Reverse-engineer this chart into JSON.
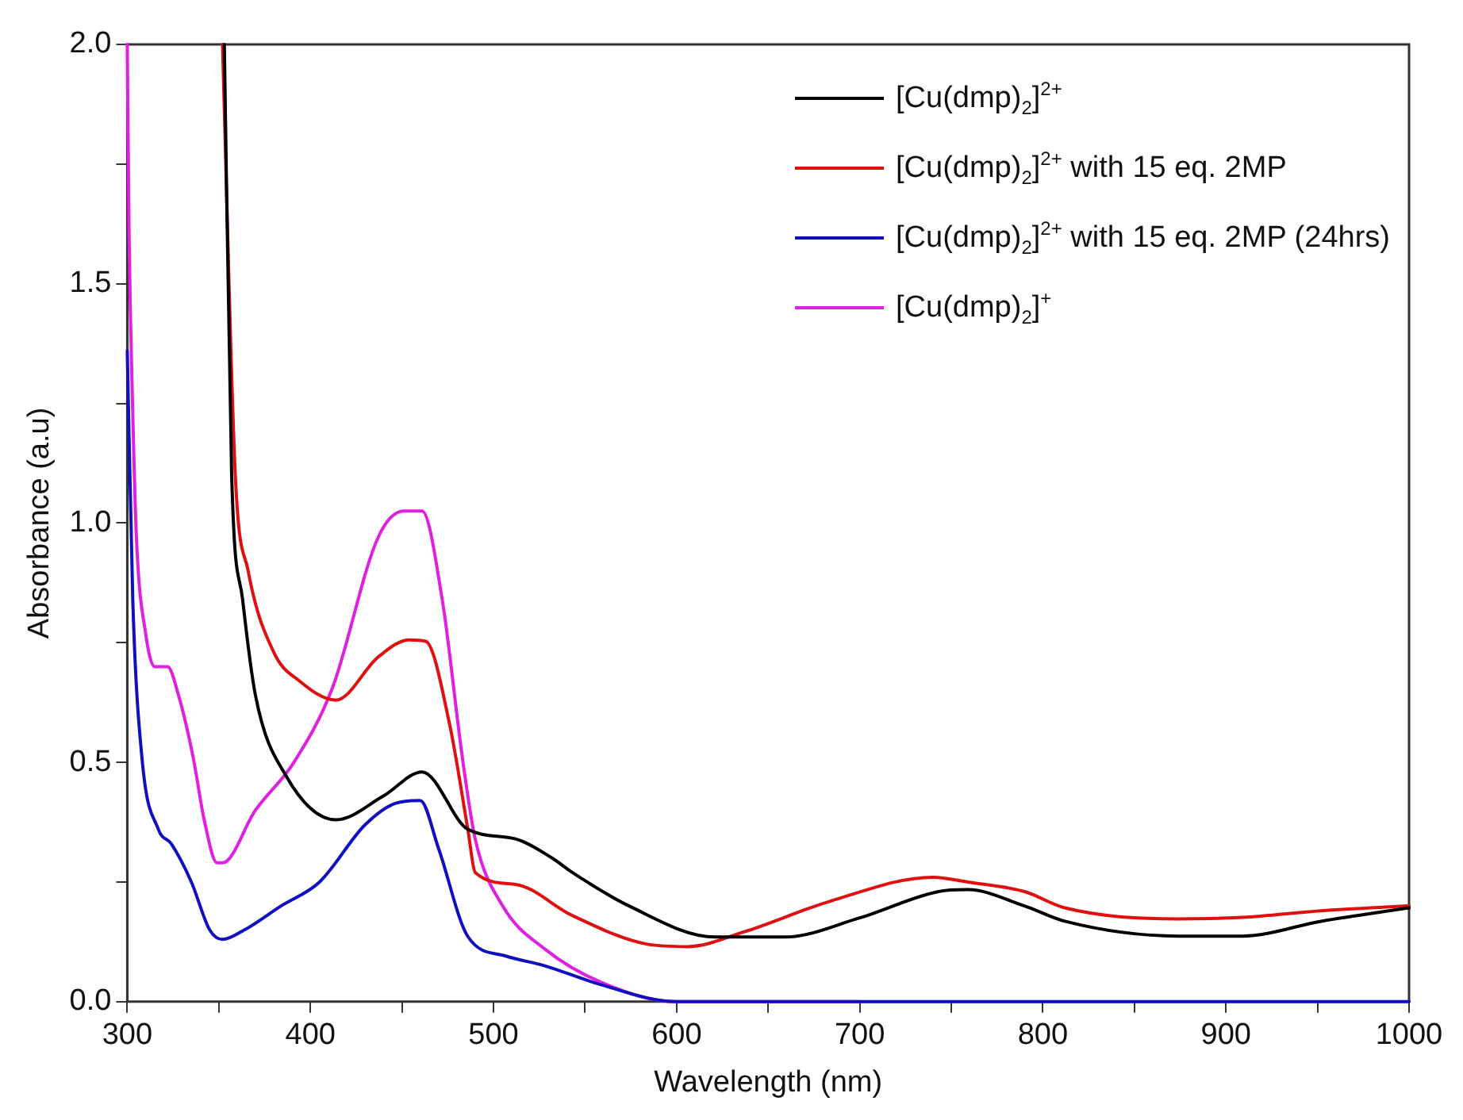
{
  "chart_data": {
    "type": "line",
    "xlabel": "Wavelength (nm)",
    "ylabel": "Absorbance (a.u)",
    "xlim": [
      300,
      1000
    ],
    "ylim": [
      0,
      2
    ],
    "xticks": [
      300,
      {
        "value": 350,
        "label": null
      },
      400,
      {
        "value": 450,
        "label": null
      },
      500,
      {
        "value": 550,
        "label": null
      },
      600,
      {
        "value": 650,
        "label": null
      },
      700,
      {
        "value": 750,
        "label": null
      },
      800,
      {
        "value": 850,
        "label": null
      },
      900,
      {
        "value": 950,
        "label": null
      },
      1000
    ],
    "yticks": [
      {
        "value": 0,
        "label": "0.0"
      },
      {
        "value": 0.25,
        "label": null
      },
      0.5,
      {
        "value": 0.75,
        "label": null
      },
      {
        "value": 1,
        "label": "1.0"
      },
      {
        "value": 1.25,
        "label": null
      },
      1.5,
      {
        "value": 1.75,
        "label": null
      },
      {
        "value": 2,
        "label": "2.0"
      }
    ],
    "grid": false,
    "legend": "top right",
    "marker": "none",
    "line_style": "solid",
    "series": [
      {
        "name": "[Cu(dmp)$_{2}$]$^{2+}$",
        "color": "#000000",
        "x": [
          353,
          357,
          363,
          370,
          387,
          414,
          440,
          461,
          486,
          512,
          532,
          543,
          574,
          621,
          659,
          700,
          743,
          759,
          790,
          812,
          874,
          909,
          952,
          1000
        ],
        "values": [
          2.0,
          1.1,
          0.84,
          0.64,
          0.47,
          0.38,
          0.43,
          0.48,
          0.36,
          0.34,
          0.3,
          0.27,
          0.2,
          0.135,
          0.135,
          0.175,
          0.23,
          0.234,
          0.2,
          0.168,
          0.137,
          0.137,
          0.168,
          0.196
        ]
      },
      {
        "name": "[Cu(dmp)$_{2}$]$^{2+}$ with 15 eq. 2MP",
        "color": "#e01010",
        "x": [
          352,
          359,
          366,
          380,
          394,
          414,
          437,
          454,
          463,
          476,
          486,
          490,
          512,
          543,
          584,
          606,
          637,
          684,
          740,
          759,
          790,
          812,
          874,
          909,
          952,
          1000
        ],
        "values": [
          2.0,
          1.1,
          0.9,
          0.73,
          0.67,
          0.63,
          0.72,
          0.756,
          0.753,
          0.58,
          0.36,
          0.27,
          0.245,
          0.18,
          0.12,
          0.115,
          0.146,
          0.21,
          0.26,
          0.25,
          0.23,
          0.196,
          0.173,
          0.176,
          0.19,
          0.2
        ]
      },
      {
        "name": "[Cu(dmp)$_{2}$]$^{2+}$ with 15 eq. 2MP (24hrs)",
        "color": "#1010c0",
        "x": [
          300,
          303,
          308,
          317,
          324,
          335,
          345,
          352,
          364,
          384,
          405,
          430,
          447,
          460,
          470,
          486,
          507,
          528,
          559,
          600,
          700,
          800,
          900,
          1000
        ],
        "values": [
          1.36,
          0.84,
          0.51,
          0.36,
          0.33,
          0.25,
          0.15,
          0.13,
          0.15,
          0.2,
          0.25,
          0.37,
          0.415,
          0.42,
          0.32,
          0.136,
          0.095,
          0.075,
          0.035,
          0.0,
          0.0,
          0.0,
          0.0,
          0.0
        ]
      },
      {
        "name": "[Cu(dmp)$_{2}$]$^{+}$",
        "color": "#e020e0",
        "x": [
          300,
          301,
          303,
          305,
          310,
          315,
          322,
          328,
          336,
          342,
          349,
          352,
          370,
          391,
          412,
          437,
          451,
          461,
          472,
          483,
          490,
          505,
          528,
          559,
          600,
          700
        ],
        "values": [
          2.0,
          1.6,
          1.23,
          0.97,
          0.77,
          0.7,
          0.7,
          0.64,
          0.51,
          0.38,
          0.29,
          0.29,
          0.4,
          0.5,
          0.655,
          0.97,
          1.025,
          1.025,
          0.84,
          0.51,
          0.34,
          0.2,
          0.11,
          0.04,
          0.0,
          0.0
        ]
      }
    ]
  }
}
